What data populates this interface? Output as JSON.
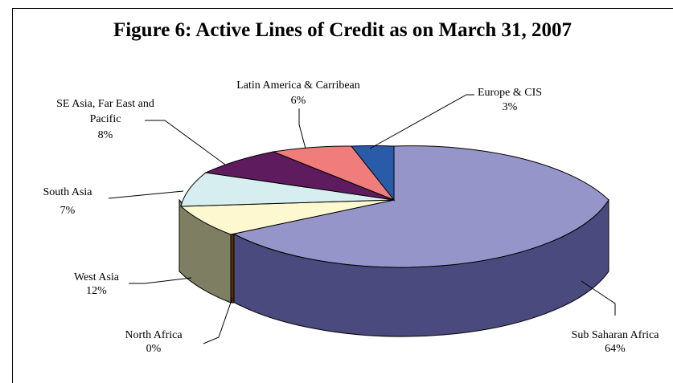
{
  "chart_data": {
    "type": "pie",
    "title": "Figure 6: Active Lines of Credit as on March 31, 2007",
    "slices": [
      {
        "label": "Sub Saharan Africa",
        "value": 64,
        "pct_label": "64%",
        "color": "#9595c9"
      },
      {
        "label": "North Africa",
        "value": 0,
        "pct_label": "0%",
        "color": "#5a2a0a"
      },
      {
        "label": "West Asia",
        "value": 12,
        "pct_label": "12%",
        "color": "#fdf8cf"
      },
      {
        "label": "South Asia",
        "value": 7,
        "pct_label": "7%",
        "color": "#d6eef0"
      },
      {
        "label": "SE Asia, Far East and Pacific",
        "value": 8,
        "pct_label": "8%",
        "color": "#5e1c5e"
      },
      {
        "label": "Latin America & Carribean",
        "value": 6,
        "pct_label": "6%",
        "color": "#f07d7b"
      },
      {
        "label": "Europe & CIS",
        "value": 3,
        "pct_label": "3%",
        "color": "#2a5ba8"
      }
    ],
    "style": "3d"
  }
}
